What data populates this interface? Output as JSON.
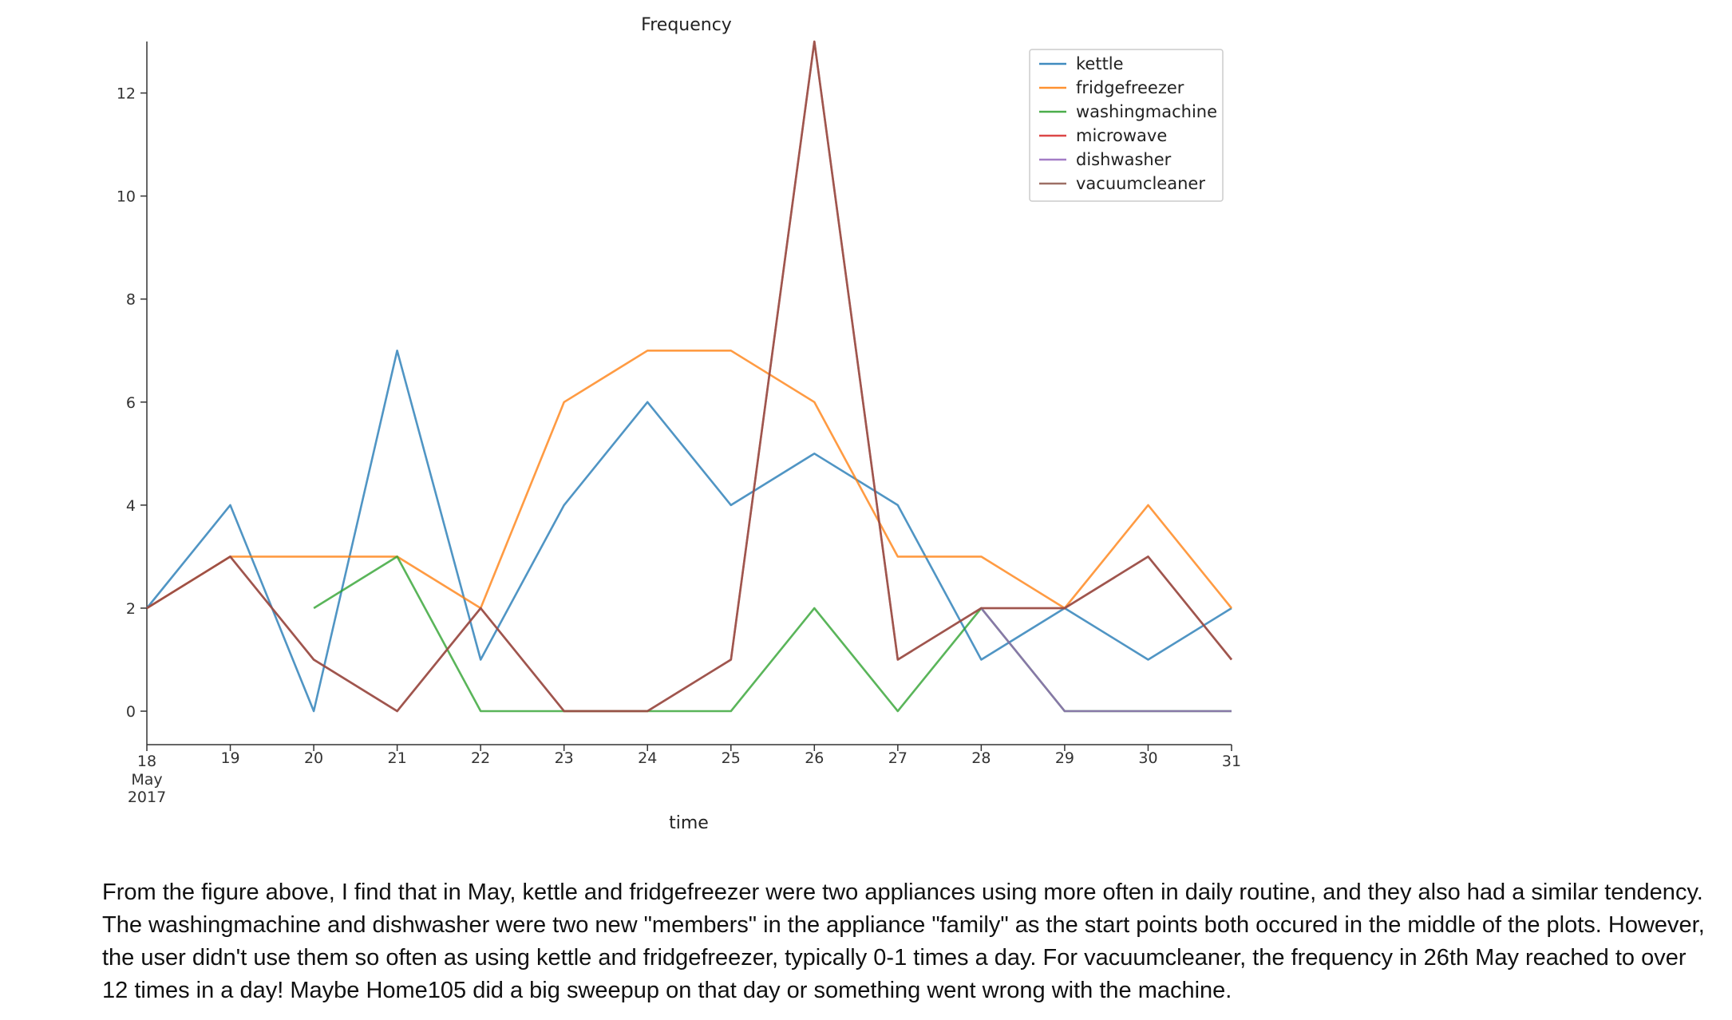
{
  "chart_data": {
    "type": "line",
    "title": "Frequency",
    "xlabel": "time",
    "ylabel": "",
    "x": [
      "2017-05-18",
      "2017-05-19",
      "2017-05-20",
      "2017-05-21",
      "2017-05-22",
      "2017-05-23",
      "2017-05-24",
      "2017-05-25",
      "2017-05-26",
      "2017-05-27",
      "2017-05-28",
      "2017-05-29",
      "2017-05-30",
      "2017-05-31"
    ],
    "x_tick_labels": [
      "18",
      "19",
      "20",
      "21",
      "22",
      "23",
      "24",
      "25",
      "26",
      "27",
      "28",
      "29",
      "30",
      "31"
    ],
    "x_tick_sublabels": [
      "May",
      "2017"
    ],
    "y_ticks": [
      0,
      2,
      4,
      6,
      8,
      10,
      12
    ],
    "ylim": [
      -0.65,
      13.0
    ],
    "grid": false,
    "legend_position": "top-right",
    "series": [
      {
        "name": "kettle",
        "color": "#1f77b4",
        "values": [
          2,
          4,
          0,
          7,
          1,
          4,
          6,
          4,
          5,
          4,
          1,
          2,
          1,
          2
        ]
      },
      {
        "name": "fridgefreezer",
        "color": "#ff7f0e",
        "values": [
          2,
          3,
          3,
          3,
          2,
          6,
          7,
          7,
          6,
          3,
          3,
          2,
          4,
          2
        ]
      },
      {
        "name": "washingmachine",
        "color": "#2ca02c",
        "values": [
          null,
          null,
          2,
          3,
          0,
          0,
          0,
          0,
          2,
          0,
          2,
          0,
          0,
          0
        ]
      },
      {
        "name": "microwave",
        "color": "#d62728",
        "values": [
          2,
          3,
          1,
          0,
          2,
          0,
          0,
          1,
          13,
          1,
          2,
          2,
          3,
          1
        ]
      },
      {
        "name": "dishwasher",
        "color": "#9467bd",
        "values": [
          null,
          null,
          null,
          null,
          null,
          null,
          null,
          null,
          null,
          null,
          2,
          0,
          0,
          0
        ]
      },
      {
        "name": "vacuumcleaner",
        "color": "#8c564b",
        "values": [
          2,
          3,
          1,
          0,
          2,
          0,
          0,
          1,
          13,
          1,
          2,
          2,
          3,
          1
        ]
      }
    ]
  },
  "caption": "From the figure above, I find that in May, kettle and fridgefreezer were two appliances using more often in daily routine, and they also had a similar tendency. The washingmachine and dishwasher were two new \"members\" in the appliance \"family\" as the start points both occured in the middle of the plots. However, the user didn't use them so often as using kettle and fridgefreezer, typically 0-1 times a day. For vacuumcleaner, the frequency in 26th May reached to over 12 times in a day! Maybe Home105 did a big sweepup on that day or something went wrong with the machine."
}
